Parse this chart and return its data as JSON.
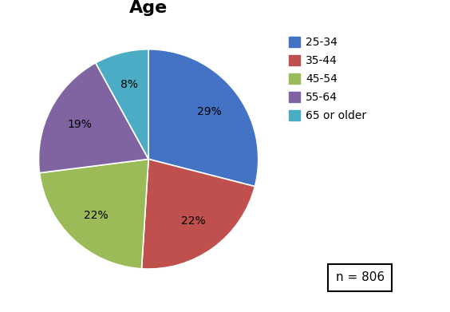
{
  "title": "Age",
  "slices": [
    29,
    22,
    22,
    19,
    8
  ],
  "labels": [
    "25-34",
    "35-44",
    "45-54",
    "55-64",
    "65 or older"
  ],
  "colors": [
    "#4472C4",
    "#C0504D",
    "#9BBB59",
    "#8064A2",
    "#4BACC6"
  ],
  "pct_labels": [
    "29%",
    "22%",
    "22%",
    "19%",
    "8%"
  ],
  "legend_labels": [
    "25-34",
    "35-44",
    "45-54",
    "55-64",
    "65 or older"
  ],
  "n_label": "n = 806",
  "title_fontsize": 16,
  "label_fontsize": 10,
  "legend_fontsize": 10,
  "startangle": 90,
  "background_color": "#ffffff"
}
